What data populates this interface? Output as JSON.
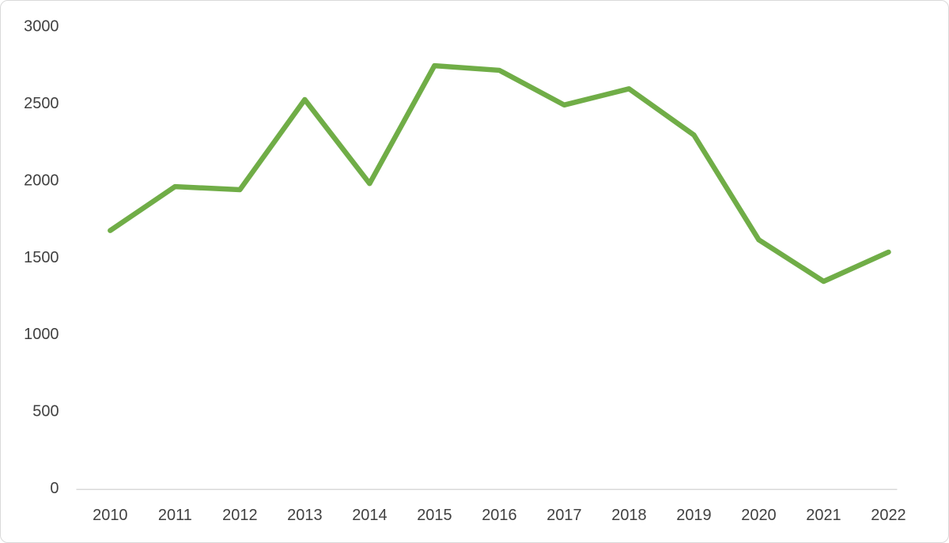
{
  "chart_data": {
    "type": "line",
    "title": "",
    "xlabel": "",
    "ylabel": "",
    "categories": [
      "2010",
      "2011",
      "2012",
      "2013",
      "2014",
      "2015",
      "2016",
      "2017",
      "2018",
      "2019",
      "2020",
      "2021",
      "2022"
    ],
    "values": [
      1670,
      1955,
      1935,
      2520,
      1975,
      2740,
      2710,
      2485,
      2590,
      2290,
      1610,
      1340,
      1530
    ],
    "y_ticks": [
      0,
      500,
      1000,
      1500,
      2000,
      2500,
      3000
    ],
    "ylim": [
      0,
      3000
    ],
    "grid": false,
    "legend": false,
    "line_color": "#70AD47",
    "line_width": 6.5
  },
  "colors": {
    "axis_line": "#D9D9D9",
    "tick_text": "#404040",
    "frame_border": "#D9D9D9",
    "background": "#FFFFFF"
  }
}
